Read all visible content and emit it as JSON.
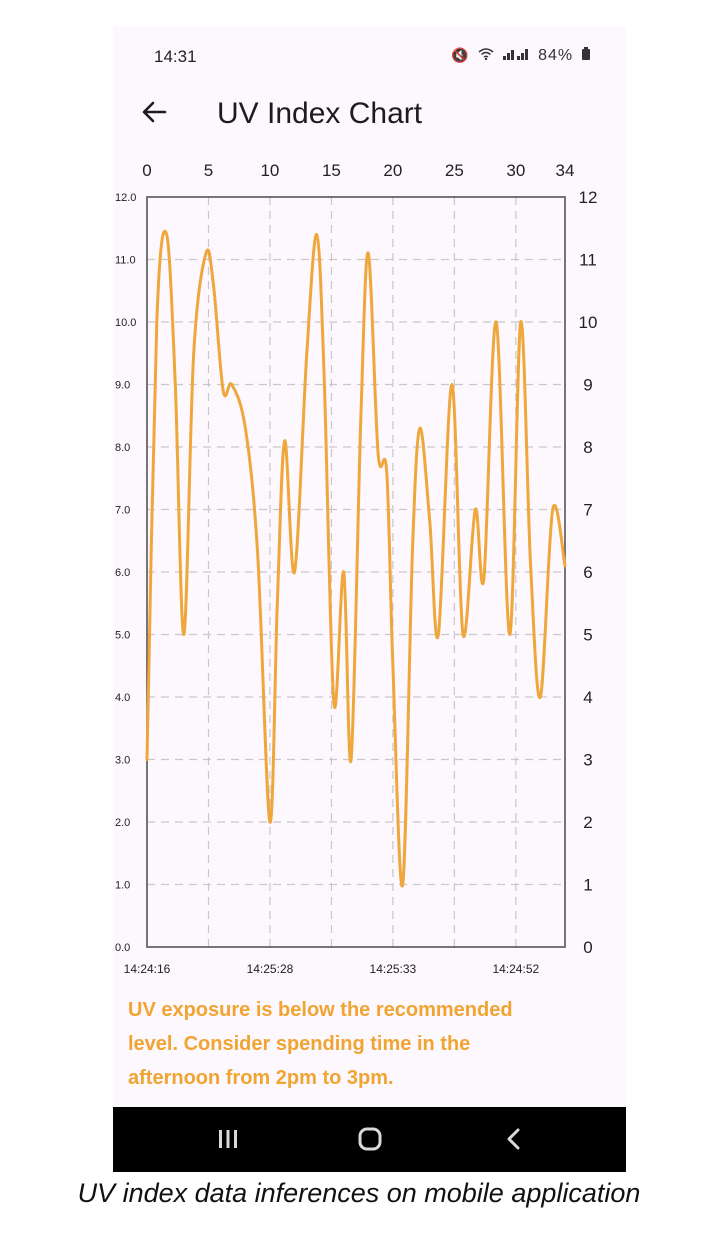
{
  "status_bar": {
    "time": "14:31",
    "icons": [
      "mute-icon",
      "wifi-icon",
      "volte-icon",
      "signal-icon"
    ],
    "battery": "84%"
  },
  "app_bar": {
    "back_icon": "arrow-left-icon",
    "title": "UV Index Chart"
  },
  "chart_data": {
    "type": "line",
    "title": "",
    "color": "#efa73c",
    "x_top_ticks": [
      0,
      5,
      10,
      15,
      20,
      25,
      30,
      34
    ],
    "xlim": [
      0,
      34
    ],
    "y_left_ticks": [
      "0.0",
      "1.0",
      "2.0",
      "3.0",
      "4.0",
      "5.0",
      "6.0",
      "7.0",
      "8.0",
      "9.0",
      "10.0",
      "11.0",
      "12.0"
    ],
    "y_right_ticks": [
      "0",
      "1",
      "2",
      "3",
      "4",
      "5",
      "6",
      "7",
      "8",
      "9",
      "10",
      "11",
      "12"
    ],
    "ylim": [
      0,
      12
    ],
    "x_bottom_labels": [
      {
        "label": "14:24:16",
        "x": 0
      },
      {
        "label": "14:25:28",
        "x": 10
      },
      {
        "label": "14:25:33",
        "x": 20
      },
      {
        "label": "14:24:52",
        "x": 30
      }
    ],
    "grid": true,
    "series": [
      {
        "points": [
          [
            0,
            3.0
          ],
          [
            0.8,
            10.0
          ],
          [
            1.6,
            11.4
          ],
          [
            2.3,
            9.0
          ],
          [
            3.0,
            5.0
          ],
          [
            3.8,
            9.5
          ],
          [
            4.8,
            11.1
          ],
          [
            5.4,
            10.6
          ],
          [
            6.2,
            8.9
          ],
          [
            6.9,
            9.0
          ],
          [
            8.0,
            8.3
          ],
          [
            9.0,
            6.3
          ],
          [
            10.0,
            2.0
          ],
          [
            10.6,
            5.5
          ],
          [
            11.2,
            8.1
          ],
          [
            12.0,
            6.0
          ],
          [
            13.0,
            9.5
          ],
          [
            13.8,
            11.4
          ],
          [
            14.4,
            9.2
          ],
          [
            15.2,
            3.9
          ],
          [
            16.0,
            6.0
          ],
          [
            16.6,
            3.0
          ],
          [
            17.4,
            8.5
          ],
          [
            18.0,
            11.1
          ],
          [
            18.8,
            7.9
          ],
          [
            19.5,
            7.6
          ],
          [
            20.0,
            4.5
          ],
          [
            20.8,
            1.0
          ],
          [
            21.6,
            6.4
          ],
          [
            22.2,
            8.3
          ],
          [
            23.0,
            6.8
          ],
          [
            23.7,
            5.0
          ],
          [
            24.8,
            9.0
          ],
          [
            25.7,
            5.0
          ],
          [
            26.7,
            7.0
          ],
          [
            27.4,
            5.9
          ],
          [
            28.4,
            10.0
          ],
          [
            29.5,
            5.0
          ],
          [
            30.4,
            10.0
          ],
          [
            31.2,
            6.1
          ],
          [
            32.0,
            4.0
          ],
          [
            33.0,
            7.0
          ],
          [
            34.0,
            6.1
          ]
        ]
      }
    ]
  },
  "message": {
    "line1": "UV exposure is below the recommended",
    "line2": "level. Consider spending time in the",
    "line3": "afternoon from 2pm to 3pm."
  },
  "nav_bar": {
    "recents_icon": "recents-icon",
    "home_icon": "home-icon",
    "back_icon": "back-chevron-icon"
  },
  "caption": "UV index data inferences on mobile application"
}
